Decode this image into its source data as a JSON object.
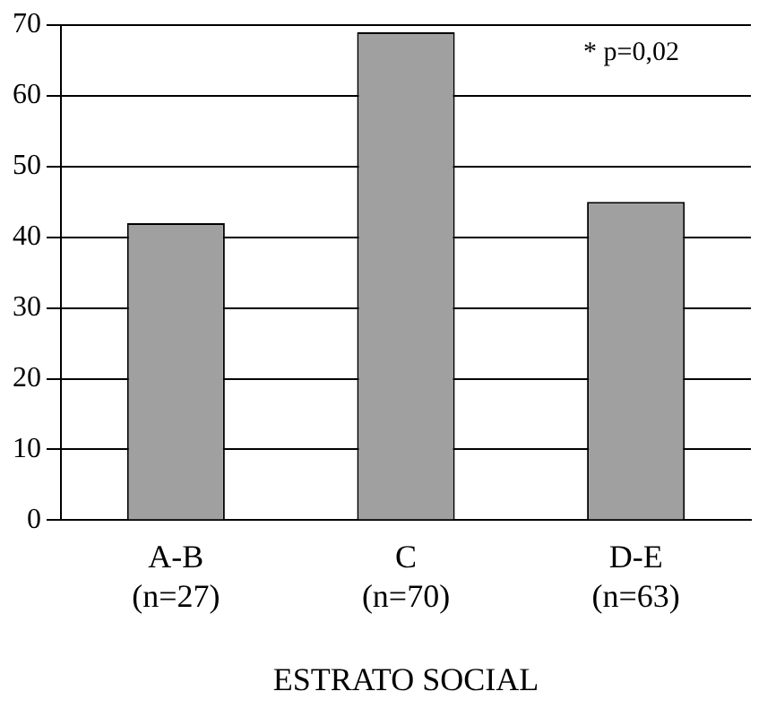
{
  "chart_data": {
    "type": "bar",
    "xlabel": "ESTRATO SOCIAL",
    "categories": [
      "A-B\n(n=27)",
      "C\n(n=70)",
      "D-E\n(n=63)"
    ],
    "values": [
      42,
      69,
      45
    ],
    "color": "#a0a0a0",
    "ylim": [
      0,
      70
    ],
    "yticks": [
      0,
      10,
      20,
      30,
      40,
      50,
      60,
      70
    ],
    "grid": "y",
    "annotations": [
      "* p=0,02"
    ]
  }
}
